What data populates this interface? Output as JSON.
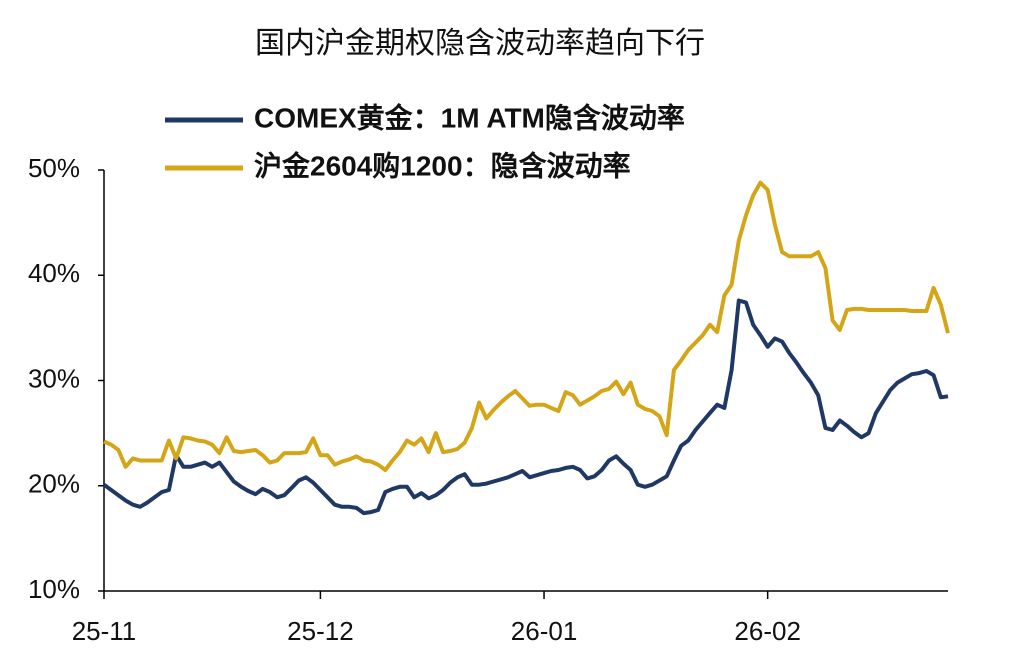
{
  "chart_data": {
    "type": "line",
    "title": "国内沪金期权隐含波动率趋向下行",
    "categories": [
      "25-11",
      null,
      null,
      null,
      null,
      null,
      null,
      null,
      null,
      null,
      null,
      null,
      null,
      null,
      null,
      null,
      null,
      null,
      null,
      null,
      null,
      null,
      null,
      null,
      null,
      null,
      null,
      null,
      null,
      null,
      "25-12",
      null,
      null,
      null,
      null,
      null,
      null,
      null,
      null,
      null,
      null,
      null,
      null,
      null,
      null,
      null,
      null,
      null,
      null,
      null,
      null,
      null,
      null,
      null,
      null,
      null,
      null,
      null,
      null,
      null,
      null,
      "26-01",
      null,
      null,
      null,
      null,
      null,
      null,
      null,
      null,
      null,
      null,
      null,
      null,
      null,
      null,
      null,
      null,
      null,
      null,
      null,
      null,
      null,
      null,
      null,
      null,
      null,
      null,
      null,
      null,
      null,
      null,
      "26-02",
      null,
      null,
      null,
      null,
      null,
      null,
      null,
      null,
      null,
      null,
      null,
      null,
      null,
      null,
      null,
      null,
      null,
      null,
      null,
      null,
      null,
      null,
      null,
      null,
      null
    ],
    "series": [
      {
        "name": "COMEX黄金：1M ATM隐含波动率",
        "color": "#1f3864",
        "values": [
          20.1,
          19.6,
          19.1,
          18.6,
          18.2,
          18.0,
          18.4,
          18.9,
          19.4,
          19.6,
          22.9,
          21.8,
          21.8,
          22.0,
          22.2,
          21.8,
          22.2,
          21.3,
          20.4,
          19.9,
          19.5,
          19.2,
          19.7,
          19.4,
          18.9,
          19.1,
          19.8,
          20.5,
          20.8,
          20.3,
          19.6,
          18.9,
          18.2,
          18.0,
          18.0,
          17.9,
          17.4,
          17.5,
          17.7,
          19.4,
          19.7,
          19.9,
          19.9,
          18.9,
          19.3,
          18.8,
          19.1,
          19.6,
          20.3,
          20.8,
          21.1,
          20.1,
          20.1,
          20.2,
          20.4,
          20.6,
          20.8,
          21.1,
          21.4,
          20.8,
          21.0,
          21.2,
          21.4,
          21.5,
          21.7,
          21.8,
          21.5,
          20.7,
          20.9,
          21.5,
          22.4,
          22.8,
          22.1,
          21.5,
          20.1,
          19.9,
          20.1,
          20.5,
          20.9,
          22.4,
          23.8,
          24.3,
          25.3,
          26.1,
          26.9,
          27.7,
          27.4,
          31.0,
          37.6,
          37.4,
          35.3,
          34.3,
          33.2,
          34.0,
          33.7,
          32.6,
          31.7,
          30.7,
          29.8,
          28.6,
          25.5,
          25.3,
          26.2,
          25.7,
          25.1,
          24.6,
          25.0,
          26.9,
          28.0,
          29.1,
          29.8,
          30.2,
          30.6,
          30.7,
          30.9,
          30.5,
          28.4,
          28.5
        ]
      },
      {
        "name": "沪金2604购1200：隐含波动率",
        "color": "#d4a617",
        "values": [
          24.2,
          23.9,
          23.4,
          21.8,
          22.6,
          22.4,
          22.4,
          22.4,
          22.4,
          24.3,
          22.6,
          24.6,
          24.5,
          24.3,
          24.2,
          23.9,
          23.1,
          24.6,
          23.3,
          23.2,
          23.3,
          23.4,
          22.9,
          22.2,
          22.4,
          23.1,
          23.1,
          23.1,
          23.2,
          24.5,
          22.9,
          22.9,
          22.0,
          22.3,
          22.5,
          22.8,
          22.4,
          22.3,
          22.0,
          21.5,
          22.4,
          23.2,
          24.3,
          23.9,
          24.5,
          23.2,
          25.0,
          23.2,
          23.3,
          23.5,
          24.1,
          25.5,
          27.9,
          26.4,
          27.2,
          27.9,
          28.5,
          29.0,
          28.3,
          27.6,
          27.7,
          27.7,
          27.4,
          27.1,
          28.9,
          28.6,
          27.7,
          28.1,
          28.5,
          29.0,
          29.2,
          29.9,
          28.7,
          29.8,
          27.7,
          27.3,
          27.1,
          26.6,
          24.8,
          31.0,
          31.9,
          32.9,
          33.6,
          34.3,
          35.3,
          34.6,
          38.1,
          39.1,
          43.3,
          45.7,
          47.6,
          48.8,
          48.1,
          44.8,
          42.2,
          41.8,
          41.8,
          41.8,
          41.8,
          42.2,
          40.7,
          35.7,
          34.8,
          36.7,
          36.8,
          36.8,
          36.7,
          36.7,
          36.7,
          36.7,
          36.7,
          36.7,
          36.6,
          36.6,
          36.6,
          38.8,
          37.2,
          34.5
        ]
      }
    ],
    "ylim": [
      10,
      50
    ],
    "yticks": [
      {
        "value": 10,
        "label": "10%"
      },
      {
        "value": 20,
        "label": "20%"
      },
      {
        "value": 30,
        "label": "30%"
      },
      {
        "value": 40,
        "label": "40%"
      },
      {
        "value": 50,
        "label": "50%"
      }
    ],
    "grid": false
  }
}
